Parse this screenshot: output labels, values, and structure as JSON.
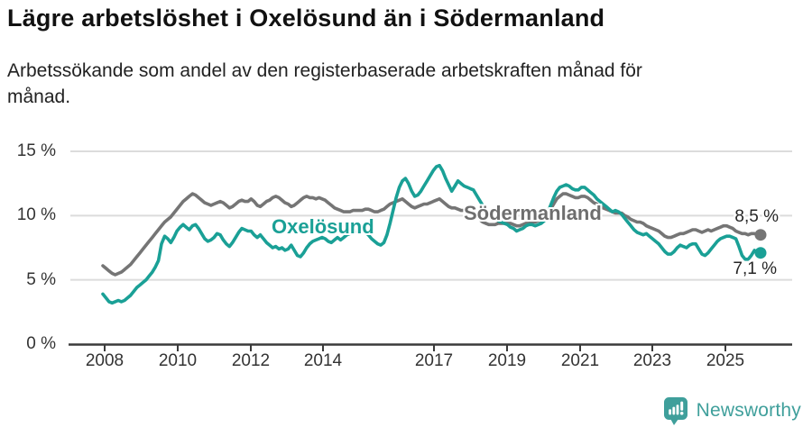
{
  "header": {
    "title": "Lägre arbetslöshet i Oxelösund än i Södermanland",
    "subtitle_lines": [
      "Arbetssökande som andel av den registerbaserade arbetskraften månad för",
      "månad."
    ]
  },
  "chart_data": {
    "type": "line",
    "unit": "percent",
    "frequency": "monthly",
    "x_start": "2008-01",
    "x_end": "2025-10",
    "ylim": [
      0,
      15
    ],
    "y_ticks": [
      0,
      5,
      10,
      15
    ],
    "y_tick_labels": [
      "0 %",
      "5 %",
      "10 %",
      "15 %"
    ],
    "x_tick_labels": [
      "2008",
      "2010",
      "2012",
      "2014",
      "2017",
      "2019",
      "2021",
      "2023",
      "2025"
    ],
    "grid": "horizontal",
    "legend": "inline-labels",
    "axis_color": "#3a3a3a",
    "grid_color": "#dcdcdc",
    "series": [
      {
        "name": "Oxelösund",
        "key": "oxelosund",
        "color": "#1aa096",
        "end_label": "7,1 %",
        "last_value": 7.1,
        "values": [
          3.9,
          3.6,
          3.3,
          3.2,
          3.3,
          3.4,
          3.3,
          3.4,
          3.6,
          3.8,
          4.1,
          4.4,
          4.6,
          4.8,
          5.0,
          5.3,
          5.6,
          6.0,
          6.5,
          7.8,
          8.4,
          8.2,
          7.9,
          8.3,
          8.8,
          9.1,
          9.3,
          9.1,
          8.9,
          9.2,
          9.3,
          9.0,
          8.6,
          8.2,
          8.0,
          8.1,
          8.3,
          8.6,
          8.5,
          8.1,
          7.8,
          7.6,
          7.9,
          8.3,
          8.7,
          9.0,
          8.9,
          8.8,
          8.8,
          8.5,
          8.3,
          8.5,
          8.2,
          7.9,
          7.7,
          7.5,
          7.6,
          7.4,
          7.5,
          7.3,
          7.4,
          7.7,
          7.3,
          6.9,
          6.8,
          7.1,
          7.5,
          7.8,
          8.0,
          8.1,
          8.2,
          8.3,
          8.2,
          8.0,
          7.9,
          8.1,
          8.3,
          8.1,
          8.3,
          8.5,
          8.6,
          8.7,
          8.8,
          8.9,
          8.9,
          8.7,
          8.5,
          8.2,
          8.0,
          7.8,
          7.7,
          7.9,
          8.5,
          9.4,
          10.4,
          11.4,
          12.2,
          12.7,
          12.9,
          12.5,
          11.9,
          11.5,
          11.6,
          11.9,
          12.3,
          12.7,
          13.1,
          13.5,
          13.8,
          13.9,
          13.5,
          12.9,
          12.4,
          11.9,
          12.3,
          12.7,
          12.5,
          12.3,
          12.2,
          12.1,
          12.0,
          11.6,
          11.2,
          10.8,
          10.5,
          10.2,
          10.0,
          9.8,
          9.6,
          9.5,
          9.4,
          9.3,
          9.1,
          9.0,
          8.8,
          8.9,
          9.0,
          9.2,
          9.3,
          9.3,
          9.2,
          9.3,
          9.4,
          9.6,
          10.2,
          10.8,
          11.4,
          11.9,
          12.2,
          12.3,
          12.4,
          12.3,
          12.1,
          12.0,
          12.0,
          12.2,
          12.2,
          12.0,
          11.8,
          11.6,
          11.3,
          11.1,
          10.9,
          10.7,
          10.5,
          10.3,
          10.4,
          10.3,
          10.1,
          9.8,
          9.5,
          9.2,
          8.9,
          8.7,
          8.6,
          8.5,
          8.6,
          8.4,
          8.2,
          8.0,
          7.8,
          7.5,
          7.2,
          7.0,
          7.0,
          7.2,
          7.5,
          7.7,
          7.6,
          7.5,
          7.7,
          7.8,
          7.8,
          7.4,
          7.0,
          6.9,
          7.1,
          7.4,
          7.7,
          8.0,
          8.2,
          8.3,
          8.4,
          8.4,
          8.3,
          8.2,
          7.6,
          6.9,
          6.6,
          6.6,
          6.9,
          7.3,
          7.0,
          7.1
        ]
      },
      {
        "name": "Södermanland",
        "key": "sodermanland",
        "color": "#757575",
        "end_label": "8,5 %",
        "last_value": 8.5,
        "values": [
          6.1,
          5.9,
          5.7,
          5.5,
          5.4,
          5.5,
          5.6,
          5.8,
          6.0,
          6.2,
          6.5,
          6.8,
          7.1,
          7.4,
          7.7,
          8.0,
          8.3,
          8.6,
          8.9,
          9.2,
          9.5,
          9.7,
          9.9,
          10.2,
          10.5,
          10.8,
          11.1,
          11.3,
          11.5,
          11.7,
          11.6,
          11.4,
          11.2,
          11.0,
          10.9,
          10.8,
          10.9,
          11.0,
          11.1,
          11.0,
          10.8,
          10.6,
          10.7,
          10.9,
          11.1,
          11.2,
          11.1,
          11.1,
          11.3,
          11.1,
          10.8,
          10.7,
          10.9,
          11.1,
          11.2,
          11.4,
          11.5,
          11.4,
          11.2,
          11.0,
          10.9,
          10.7,
          10.8,
          11.0,
          11.2,
          11.4,
          11.5,
          11.4,
          11.4,
          11.3,
          11.4,
          11.3,
          11.2,
          11.0,
          10.8,
          10.6,
          10.5,
          10.4,
          10.3,
          10.3,
          10.3,
          10.4,
          10.4,
          10.4,
          10.4,
          10.5,
          10.5,
          10.4,
          10.3,
          10.3,
          10.4,
          10.5,
          10.7,
          10.9,
          11.0,
          11.1,
          11.2,
          11.3,
          11.1,
          10.9,
          10.7,
          10.6,
          10.7,
          10.8,
          10.9,
          10.9,
          11.0,
          11.1,
          11.2,
          11.3,
          11.1,
          10.9,
          10.7,
          10.6,
          10.6,
          10.5,
          10.4,
          10.4,
          10.3,
          10.2,
          10.1,
          9.9,
          9.7,
          9.5,
          9.4,
          9.3,
          9.3,
          9.3,
          9.4,
          9.4,
          9.4,
          9.4,
          9.4,
          9.3,
          9.2,
          9.2,
          9.3,
          9.4,
          9.4,
          9.5,
          9.5,
          9.6,
          9.6,
          9.7,
          10.1,
          10.5,
          10.9,
          11.3,
          11.5,
          11.7,
          11.7,
          11.6,
          11.5,
          11.4,
          11.4,
          11.5,
          11.5,
          11.4,
          11.2,
          11.0,
          10.9,
          10.7,
          10.6,
          10.5,
          10.4,
          10.3,
          10.2,
          10.2,
          10.2,
          10.0,
          9.9,
          9.7,
          9.6,
          9.5,
          9.5,
          9.4,
          9.2,
          9.1,
          9.0,
          8.9,
          8.8,
          8.6,
          8.4,
          8.3,
          8.3,
          8.4,
          8.5,
          8.6,
          8.6,
          8.7,
          8.8,
          8.9,
          8.9,
          8.8,
          8.7,
          8.8,
          8.9,
          8.8,
          8.9,
          9.0,
          9.1,
          9.2,
          9.2,
          9.1,
          9.0,
          8.8,
          8.7,
          8.6,
          8.6,
          8.5,
          8.6,
          8.6,
          8.5,
          8.5
        ]
      }
    ]
  },
  "footer": {
    "brand": "Newsworthy"
  }
}
